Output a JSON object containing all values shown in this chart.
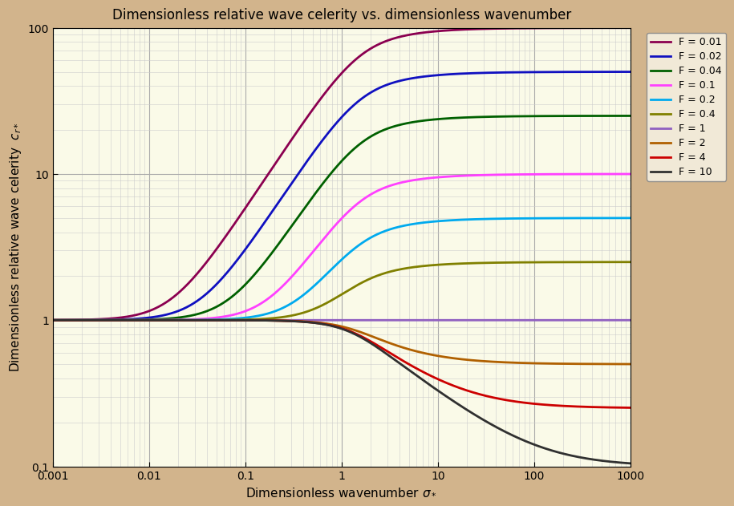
{
  "title": "Dimensionless relative wave celerity vs. dimensionless wavenumber",
  "xlabel": "Dimensionless wavenumber σ₄",
  "ylabel": "Dimensionless relative wave celerity  cᵣ₄",
  "xlim_log": [
    -3,
    3
  ],
  "ylim_log": [
    -1,
    2
  ],
  "froude_numbers": [
    0.01,
    0.02,
    0.04,
    0.1,
    0.2,
    0.4,
    1.0,
    2.0,
    4.0,
    10.0
  ],
  "colors": [
    "#8B0050",
    "#1010C0",
    "#006000",
    "#FF40FF",
    "#00AAEE",
    "#808000",
    "#9060C0",
    "#B06000",
    "#CC0000",
    "#303030"
  ],
  "legend_labels": [
    "F = 0.01",
    "F = 0.02",
    "F = 0.04",
    "F = 0.1",
    "F = 0.2",
    "F = 0.4",
    "F = 1",
    "F = 2",
    "F = 4",
    "F = 10"
  ],
  "background_color": "#FAFAE8",
  "outer_background": "#D2B48C",
  "line_width": 2.0
}
